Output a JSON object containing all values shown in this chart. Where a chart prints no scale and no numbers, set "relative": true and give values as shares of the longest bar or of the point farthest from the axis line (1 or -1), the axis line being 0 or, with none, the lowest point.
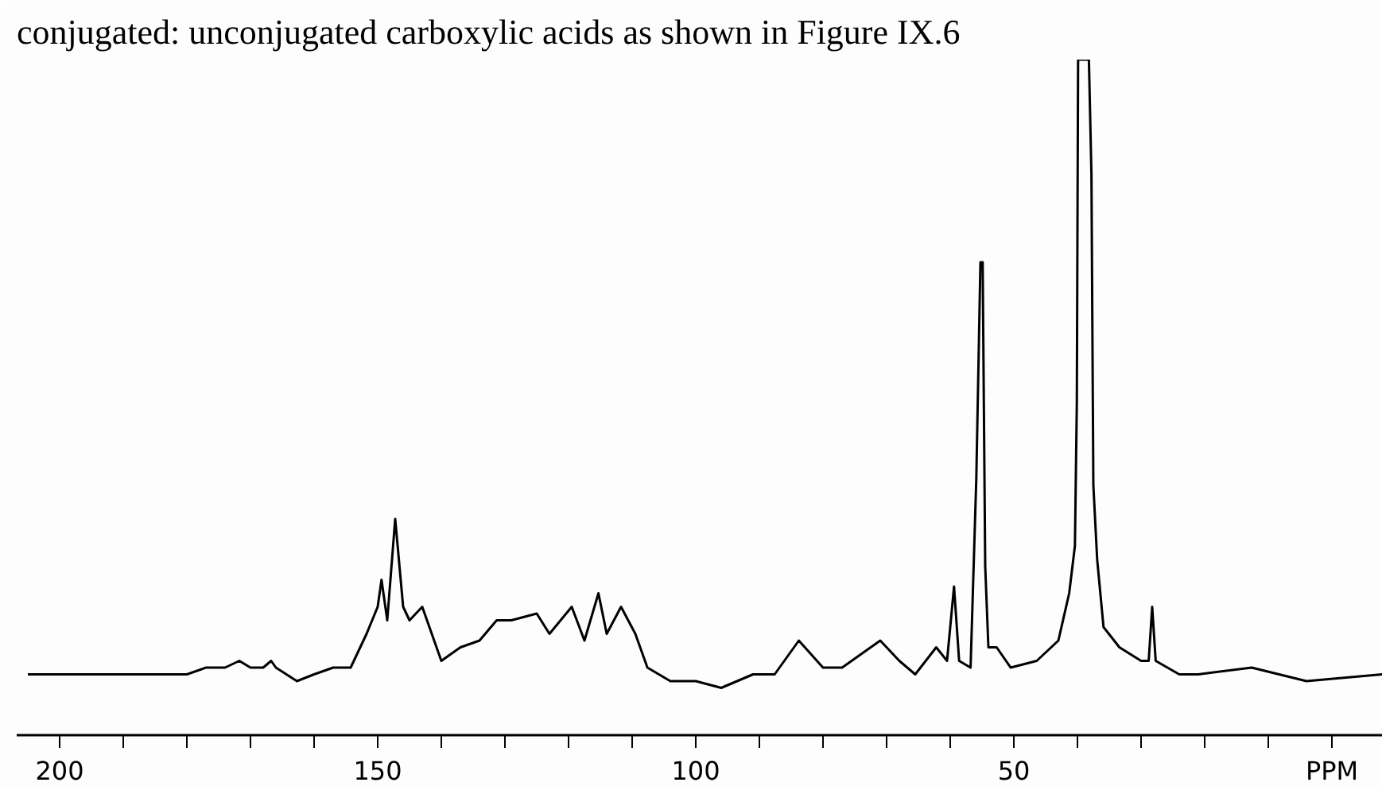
{
  "chart_data": {
    "type": "line",
    "annotations": [
      "conjugated: unconjugated carboxylic acids as shown in Figure IX.6"
    ],
    "relative": true,
    "x": [
      205,
      200,
      195,
      190,
      185,
      180,
      177,
      174,
      171.75,
      170,
      168,
      166.75,
      166,
      162.7,
      160,
      157,
      154.25,
      151.75,
      150,
      149.4,
      148.5,
      147.25,
      146,
      145,
      143,
      140,
      137,
      134,
      131.3,
      129,
      125,
      123,
      119.5,
      117.5,
      115.3,
      114,
      111.75,
      109.5,
      107.6,
      104,
      100,
      96,
      91,
      87.6,
      83.8,
      80,
      77,
      71,
      68,
      65.5,
      62.2,
      60.5,
      59.4,
      58.6,
      56.8,
      55.9,
      55.25,
      54.9,
      54.5,
      54,
      52.7,
      50.5,
      46.4,
      43,
      41.3,
      40.4,
      40.1,
      39.9,
      38.2,
      37.8,
      37.5,
      36.9,
      35.9,
      33.4,
      30,
      28.8,
      28.25,
      27.7,
      24,
      21,
      12.6,
      4,
      -8
    ],
    "values": [
      0.09,
      0.09,
      0.09,
      0.09,
      0.09,
      0.09,
      0.1,
      0.1,
      0.11,
      0.1,
      0.1,
      0.11,
      0.1,
      0.08,
      0.09,
      0.1,
      0.1,
      0.15,
      0.19,
      0.23,
      0.17,
      0.32,
      0.19,
      0.17,
      0.19,
      0.11,
      0.13,
      0.14,
      0.17,
      0.17,
      0.18,
      0.15,
      0.19,
      0.14,
      0.21,
      0.15,
      0.19,
      0.15,
      0.1,
      0.08,
      0.08,
      0.07,
      0.09,
      0.09,
      0.14,
      0.1,
      0.1,
      0.14,
      0.11,
      0.09,
      0.13,
      0.11,
      0.22,
      0.11,
      0.1,
      0.38,
      0.7,
      0.7,
      0.25,
      0.13,
      0.13,
      0.1,
      0.11,
      0.14,
      0.21,
      0.28,
      0.49,
      1,
      1,
      0.83,
      0.37,
      0.26,
      0.16,
      0.13,
      0.11,
      0.11,
      0.19,
      0.11,
      0.09,
      0.09,
      0.1,
      0.08,
      0.09
    ],
    "color": "#000000",
    "xlim": [
      206.75,
      -8
    ],
    "xticks": [
      200,
      {
        "value": 190,
        "label": null
      },
      {
        "value": 180,
        "label": null
      },
      {
        "value": 170,
        "label": null
      },
      {
        "value": 160,
        "label": null
      },
      150,
      {
        "value": 140,
        "label": null
      },
      {
        "value": 130,
        "label": null
      },
      {
        "value": 120,
        "label": null
      },
      {
        "value": 110,
        "label": null
      },
      100,
      {
        "value": 90,
        "label": null
      },
      {
        "value": 80,
        "label": null
      },
      {
        "value": 70,
        "label": null
      },
      {
        "value": 60,
        "label": null
      },
      50,
      {
        "value": 40,
        "label": null
      },
      {
        "value": 30,
        "label": null
      },
      {
        "value": 20,
        "label": null
      },
      {
        "value": 10,
        "label": null
      },
      {
        "value": 0,
        "label": "PPM"
      }
    ],
    "grid": false
  }
}
